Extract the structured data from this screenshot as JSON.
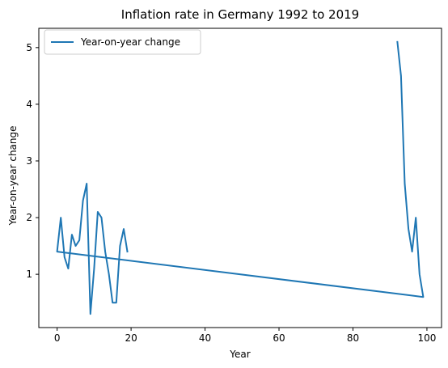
{
  "chart_data": {
    "type": "line",
    "title": "Inflation rate in Germany 1992 to 2019",
    "xlabel": "Year",
    "ylabel": "Year-on-year change",
    "xlim": [
      -4.95,
      103.95
    ],
    "ylim": [
      0.06,
      5.34
    ],
    "xticks": [
      0,
      20,
      40,
      60,
      80,
      100
    ],
    "yticks": [
      1,
      2,
      3,
      4,
      5
    ],
    "grid": false,
    "legend": {
      "position": "upper-left",
      "entries": [
        "Year-on-year change"
      ]
    },
    "colors": {
      "series": "#1f77b4"
    },
    "series": [
      {
        "name": "Year-on-year change",
        "x": [
          92,
          93,
          94,
          95,
          96,
          97,
          98,
          99,
          0,
          1,
          2,
          3,
          4,
          5,
          6,
          7,
          8,
          9,
          10,
          11,
          12,
          13,
          14,
          15,
          16,
          17,
          18,
          19
        ],
        "values": [
          5.1,
          4.5,
          2.6,
          1.8,
          1.4,
          2.0,
          1.0,
          0.6,
          1.4,
          2.0,
          1.3,
          1.1,
          1.7,
          1.5,
          1.6,
          2.3,
          2.6,
          0.3,
          1.1,
          2.1,
          2.0,
          1.4,
          1.0,
          0.5,
          0.5,
          1.5,
          1.8,
          1.4
        ]
      }
    ]
  }
}
